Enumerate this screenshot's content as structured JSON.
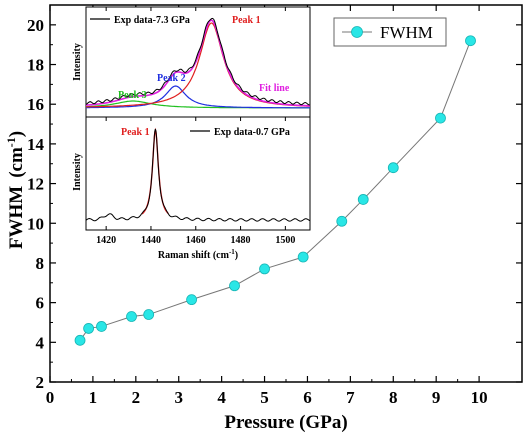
{
  "chart_data": [
    {
      "type": "line",
      "xlabel": "Pressure (GPa)",
      "ylabel_main": "FWHM",
      "ylabel_unit": "(cm",
      "ylabel_sup": "-1",
      "ylabel_close": ")",
      "xlim": [
        0,
        11
      ],
      "ylim": [
        2,
        21
      ],
      "xticks": [
        "0",
        "1",
        "2",
        "3",
        "4",
        "5",
        "6",
        "7",
        "8",
        "9",
        "10"
      ],
      "yticks": [
        "2",
        "4",
        "6",
        "8",
        "10",
        "12",
        "14",
        "16",
        "18",
        "20"
      ],
      "legend": {
        "label": "FWHM",
        "placement": "top-right"
      },
      "marker_color": "#29e6e6",
      "line_color": "#777777",
      "series": [
        {
          "name": "FWHM",
          "x": [
            0.7,
            0.9,
            1.2,
            1.9,
            2.3,
            3.3,
            4.3,
            5.0,
            5.9,
            6.8,
            7.3,
            8.0,
            9.1,
            9.8
          ],
          "y": [
            4.1,
            4.7,
            4.8,
            5.3,
            5.4,
            6.15,
            6.85,
            7.7,
            8.3,
            10.1,
            11.2,
            12.8,
            15.3,
            19.2
          ]
        }
      ]
    },
    {
      "type": "line",
      "panel": "inset-top",
      "ylabel": "Intensity",
      "legend": "Exp data-7.3 GPa",
      "labels": {
        "peak1": "Peak 1",
        "peak2": "Peak 2",
        "peak3": "Peak 3",
        "fit": "Fit line"
      },
      "colors": {
        "data": "#000000",
        "peak1": "#e02020",
        "peak2": "#2030e0",
        "peak3": "#20c020",
        "fit": "#e020e0"
      },
      "peaks": [
        {
          "name": "Peak 1",
          "center": 1467,
          "amplitude": 0.85,
          "width": 6.5
        },
        {
          "name": "Peak 2",
          "center": 1451,
          "amplitude": 0.22,
          "width": 5.5
        },
        {
          "name": "Peak 3",
          "center": 1432,
          "amplitude": 0.07,
          "width": 10
        }
      ]
    },
    {
      "type": "line",
      "panel": "inset-bottom",
      "ylabel": "Intensity",
      "xlabel": "Raman shift (cm",
      "xlabel_sup": "-1",
      "xlabel_close": ")",
      "legend": "Exp data-0.7 GPa",
      "peak_label": "Peak 1",
      "xlim": [
        1411,
        1511
      ],
      "xticks": [
        "1420",
        "1440",
        "1460",
        "1480",
        "1500"
      ],
      "colors": {
        "data": "#000000",
        "peak": "#e02020"
      },
      "peaks": [
        {
          "name": "Peak 1",
          "center": 1442,
          "amplitude": 0.9,
          "width": 1.6
        }
      ]
    }
  ]
}
